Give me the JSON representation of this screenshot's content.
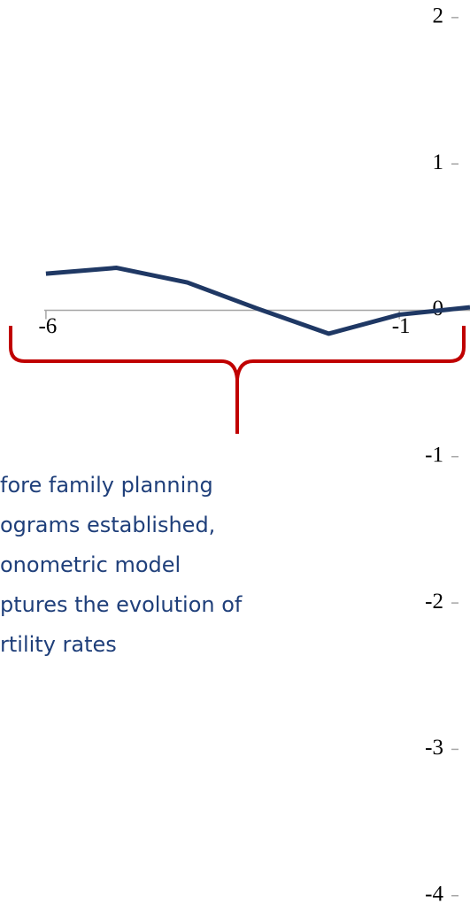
{
  "chart_data": {
    "type": "line",
    "x": [
      -6,
      -5,
      -4,
      -3,
      -2,
      -1,
      0
    ],
    "series": [
      {
        "color": "#1f3864",
        "values": [
          0.25,
          0.29,
          0.19,
          0.01,
          -0.16,
          -0.03,
          0.02
        ]
      }
    ],
    "xlim": [
      -6.65,
      0
    ],
    "xticks": [
      -6,
      -1
    ],
    "ylim": [
      -4.05,
      2.12
    ],
    "yticks": [
      2,
      1,
      0,
      -1,
      -2,
      -3,
      -4
    ],
    "annotation": [
      "fore family planning",
      "ograms established,",
      "onometric model",
      "ptures the evolution of",
      "rtility rates"
    ],
    "annotation_color": "#c00000"
  }
}
